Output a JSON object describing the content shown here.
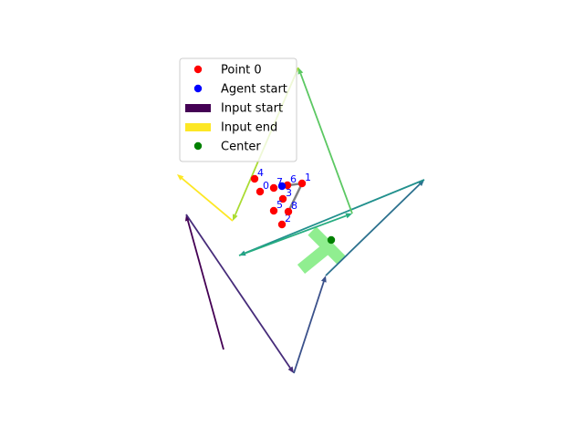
{
  "chart_data": {
    "type": "scatter",
    "title": "",
    "xlabel": "",
    "ylabel": "",
    "axes_visible": false,
    "grid": false,
    "points": [
      {
        "label": "0",
        "x": 285,
        "y": 210
      },
      {
        "label": "1",
        "x": 331,
        "y": 201
      },
      {
        "label": "2",
        "x": 309,
        "y": 246
      },
      {
        "label": "3",
        "x": 310,
        "y": 218
      },
      {
        "label": "4",
        "x": 279,
        "y": 196
      },
      {
        "label": "5",
        "x": 300,
        "y": 231
      },
      {
        "label": "6",
        "x": 315,
        "y": 203
      },
      {
        "label": "7",
        "x": 300,
        "y": 206
      },
      {
        "label": "8",
        "x": 316,
        "y": 232
      }
    ],
    "point_color": "#ff0000",
    "agent_start": {
      "x": 309,
      "y": 204,
      "color": "#0000ff"
    },
    "center": {
      "x": 363,
      "y": 263,
      "color": "#008000"
    },
    "agent_path": [
      [
        309,
        204
      ],
      [
        331,
        201
      ],
      [
        316,
        232
      ]
    ],
    "agent_path_color": "#808080",
    "input_arrows": [
      {
        "from": [
          245,
          383
        ],
        "to": [
          204,
          235
        ],
        "color": "#440154"
      },
      {
        "from": [
          204,
          235
        ],
        "to": [
          322,
          409
        ],
        "color": "#472c7a"
      },
      {
        "from": [
          322,
          409
        ],
        "to": [
          357,
          302
        ],
        "color": "#3b518b"
      },
      {
        "from": [
          357,
          302
        ],
        "to": [
          465,
          197
        ],
        "color": "#2c718e"
      },
      {
        "from": [
          465,
          197
        ],
        "to": [
          262,
          280
        ],
        "color": "#21908d"
      },
      {
        "from": [
          262,
          280
        ],
        "to": [
          386,
          234
        ],
        "color": "#27ad81"
      },
      {
        "from": [
          386,
          234
        ],
        "to": [
          327,
          74
        ],
        "color": "#5cc863"
      },
      {
        "from": [
          327,
          74
        ],
        "to": [
          255,
          242
        ],
        "color": "#aadc32"
      },
      {
        "from": [
          255,
          242
        ],
        "to": [
          194,
          191
        ],
        "color": "#fde725"
      }
    ],
    "shape": {
      "color": "#90ee90",
      "bars": [
        {
          "from": [
            342,
            253
          ],
          "to": [
            374,
            285
          ]
        },
        {
          "from": [
            362,
            269
          ],
          "to": [
            330,
            295
          ]
        }
      ]
    },
    "legend": {
      "position": "upper-center",
      "entries": [
        {
          "marker": "circle",
          "color": "#ff0000",
          "label": "Point 0"
        },
        {
          "marker": "circle",
          "color": "#0000ff",
          "label": "Agent start"
        },
        {
          "marker": "rect",
          "color": "#440154",
          "label": "Input start"
        },
        {
          "marker": "rect",
          "color": "#fde725",
          "label": "Input end"
        },
        {
          "marker": "circle",
          "color": "#008000",
          "label": "Center"
        }
      ]
    }
  }
}
